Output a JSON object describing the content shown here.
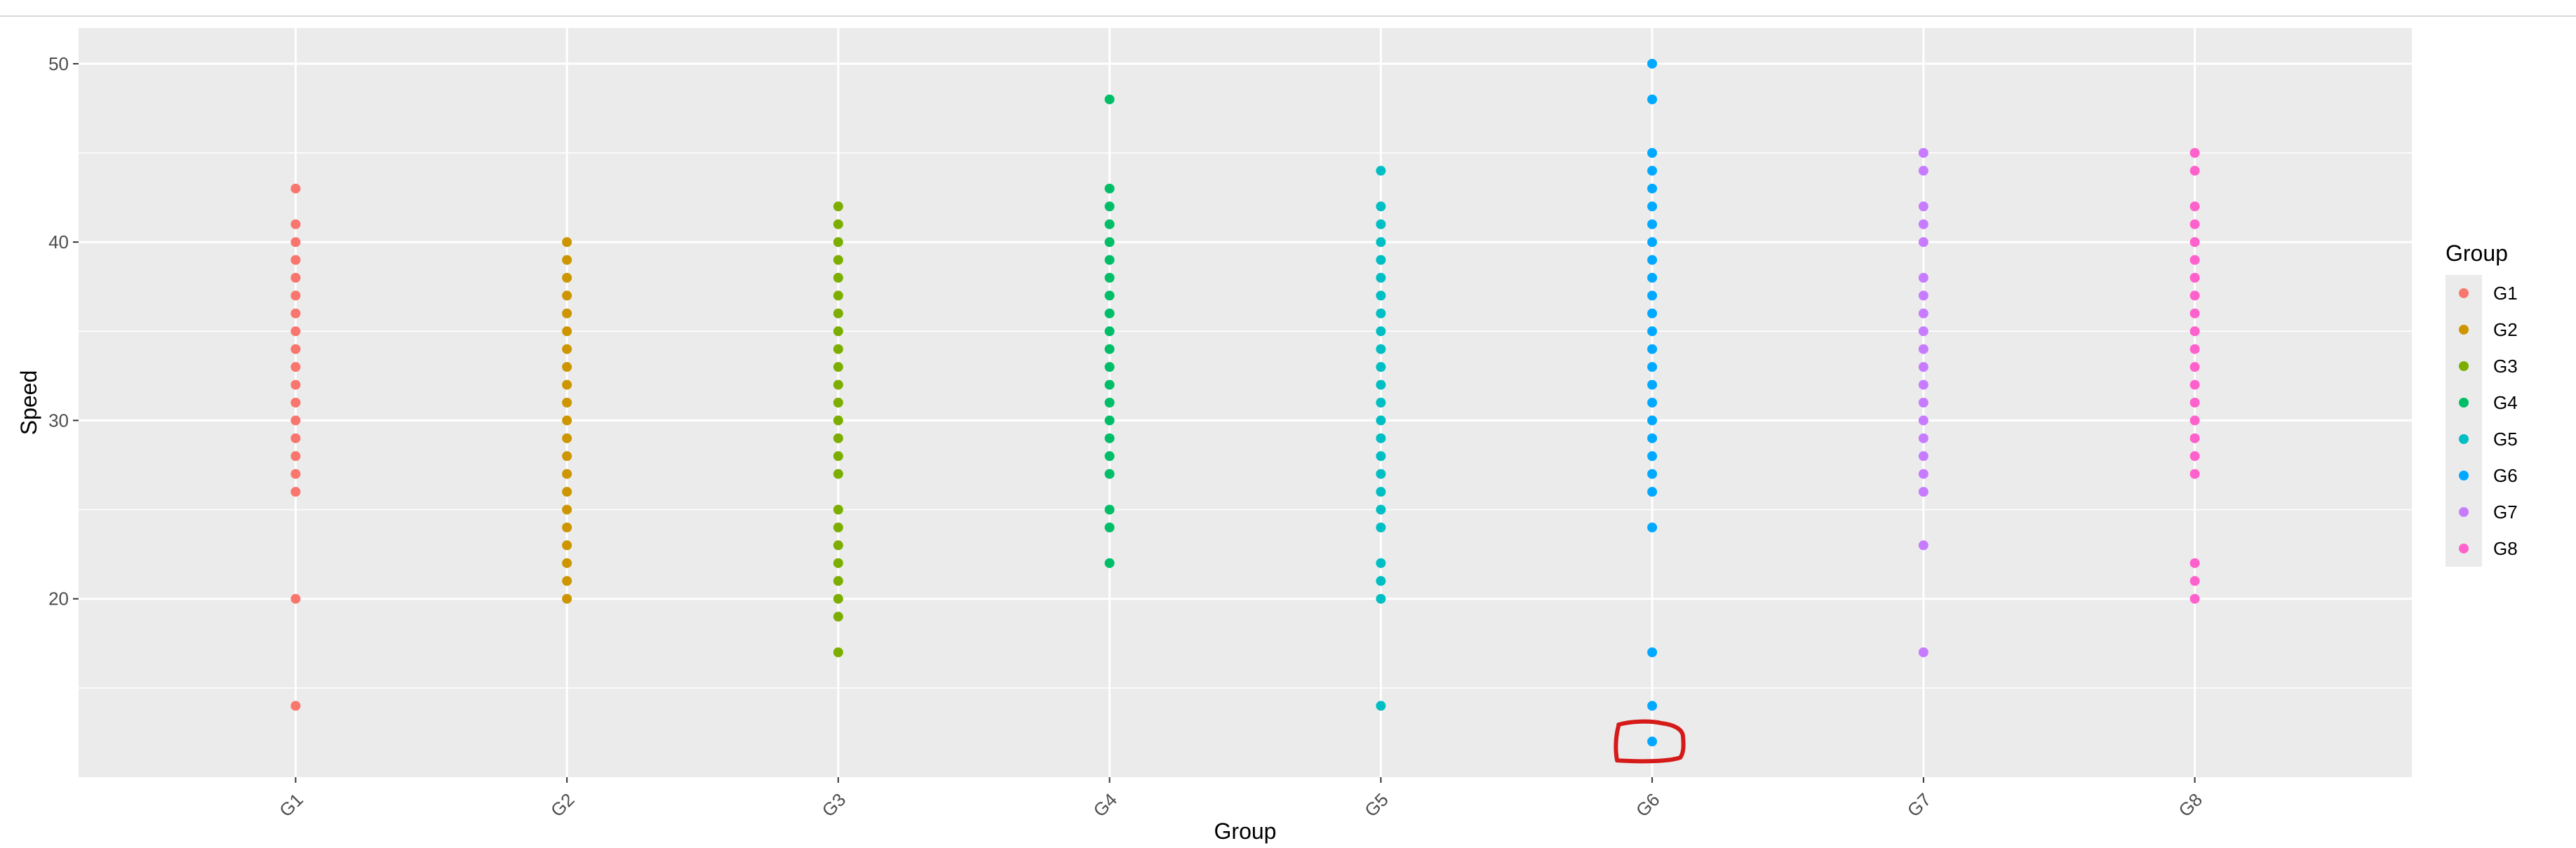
{
  "chart_data": {
    "type": "scatter",
    "title": "",
    "xlabel": "Group",
    "ylabel": "Speed",
    "ylim": [
      10,
      52
    ],
    "yticks": [
      20,
      30,
      40,
      50
    ],
    "categories": [
      "G1",
      "G2",
      "G3",
      "G4",
      "G5",
      "G6",
      "G7",
      "G8"
    ],
    "grid": true,
    "legend": {
      "title": "Group",
      "position": "right"
    },
    "series": [
      {
        "name": "G1",
        "color": "#F8766D",
        "values": [
          14,
          20,
          26,
          27,
          28,
          29,
          30,
          31,
          32,
          33,
          34,
          35,
          36,
          37,
          38,
          39,
          40,
          41,
          43
        ]
      },
      {
        "name": "G2",
        "color": "#CD9600",
        "values": [
          20,
          21,
          22,
          23,
          24,
          25,
          26,
          27,
          28,
          29,
          30,
          31,
          32,
          33,
          34,
          35,
          36,
          37,
          38,
          39,
          40
        ]
      },
      {
        "name": "G3",
        "color": "#7CAE00",
        "values": [
          17,
          19,
          20,
          21,
          22,
          23,
          24,
          25,
          27,
          28,
          29,
          30,
          31,
          32,
          33,
          34,
          35,
          36,
          37,
          38,
          39,
          40,
          41,
          42
        ]
      },
      {
        "name": "G4",
        "color": "#00BE67",
        "values": [
          22,
          24,
          25,
          27,
          28,
          29,
          30,
          31,
          32,
          33,
          34,
          35,
          36,
          37,
          38,
          39,
          40,
          41,
          42,
          43,
          48
        ]
      },
      {
        "name": "G5",
        "color": "#00BFC4",
        "values": [
          14,
          20,
          21,
          22,
          24,
          25,
          26,
          27,
          28,
          29,
          30,
          31,
          32,
          33,
          34,
          35,
          36,
          37,
          38,
          39,
          40,
          41,
          42,
          44
        ]
      },
      {
        "name": "G6",
        "color": "#00A9FF",
        "values": [
          12,
          14,
          17,
          24,
          26,
          27,
          28,
          29,
          30,
          31,
          32,
          33,
          34,
          35,
          36,
          37,
          38,
          39,
          40,
          41,
          42,
          43,
          44,
          45,
          48,
          50
        ]
      },
      {
        "name": "G7",
        "color": "#C77CFF",
        "values": [
          17,
          23,
          26,
          27,
          28,
          29,
          30,
          31,
          32,
          33,
          34,
          35,
          36,
          37,
          38,
          40,
          41,
          42,
          44,
          45
        ]
      },
      {
        "name": "G8",
        "color": "#FF61CC",
        "values": [
          20,
          21,
          22,
          27,
          28,
          29,
          30,
          31,
          32,
          33,
          34,
          35,
          36,
          37,
          38,
          39,
          40,
          41,
          42,
          44,
          45
        ]
      }
    ],
    "annotations": [
      {
        "type": "hand-drawn-outline",
        "color": "#d61a1a",
        "category": "G6",
        "y": 12
      }
    ]
  }
}
